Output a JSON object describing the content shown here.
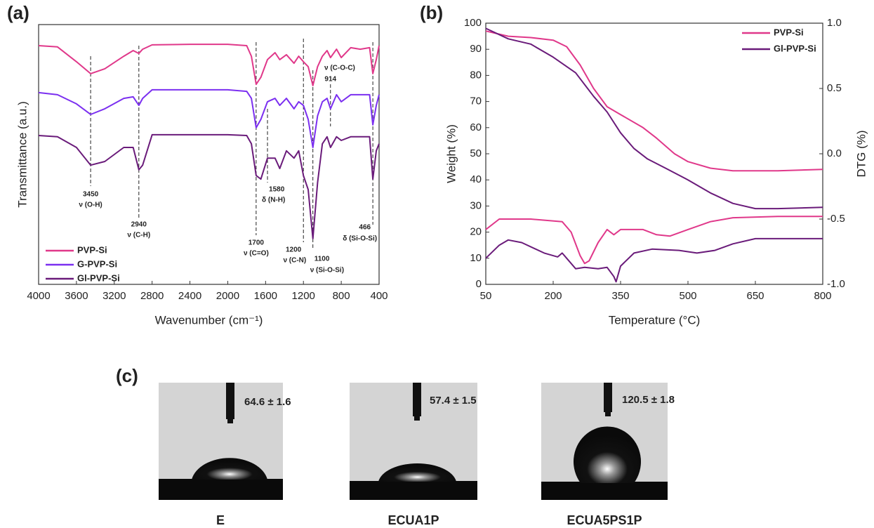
{
  "chart_data": [
    {
      "type": "line",
      "label": "(a)",
      "x_label": "Wavenumber (cm⁻¹)",
      "y_label": "Transmittance (a.u.)",
      "xlim": [
        4000,
        400
      ],
      "xticks": [
        4000,
        3600,
        3200,
        2800,
        2400,
        2000,
        1600,
        1200,
        800,
        400
      ],
      "ylim": [
        0,
        100
      ],
      "x": [
        4000,
        3800,
        3600,
        3450,
        3300,
        3100,
        3000,
        2940,
        2900,
        2800,
        2400,
        2000,
        1800,
        1750,
        1700,
        1650,
        1580,
        1500,
        1450,
        1380,
        1300,
        1250,
        1200,
        1150,
        1100,
        1050,
        1000,
        950,
        914,
        850,
        800,
        700,
        600,
        500,
        466,
        430,
        400
      ],
      "series": [
        {
          "name": "PVP-Si",
          "color": "#e0388a",
          "values": [
            91.9,
            91.4,
            85.7,
            81.1,
            83.0,
            87.8,
            90.0,
            88.9,
            90.5,
            92.2,
            92.4,
            92.4,
            91.9,
            87.8,
            77.0,
            79.7,
            86.5,
            89.2,
            86.5,
            88.4,
            85.1,
            87.8,
            85.7,
            83.8,
            76.5,
            83.8,
            87.8,
            90.0,
            87.3,
            90.5,
            87.3,
            91.1,
            90.5,
            91.1,
            81.1,
            86.5,
            91.9
          ]
        },
        {
          "name": "G-PVP-Si",
          "color": "#7b2ff0",
          "values": [
            73.8,
            73.0,
            69.5,
            65.4,
            67.6,
            71.6,
            72.2,
            68.9,
            71.6,
            74.9,
            74.9,
            74.9,
            74.3,
            71.6,
            60.3,
            63.5,
            70.3,
            71.6,
            68.9,
            71.6,
            67.6,
            70.3,
            68.9,
            63.5,
            52.7,
            64.9,
            70.3,
            71.6,
            67.6,
            73.0,
            70.3,
            73.0,
            73.0,
            73.0,
            61.4,
            68.9,
            73.0
          ]
        },
        {
          "name": "Gl-PVP-Si",
          "color": "#6a1b7a",
          "values": [
            57.3,
            56.8,
            52.7,
            45.9,
            47.3,
            52.7,
            52.7,
            44.1,
            45.9,
            57.6,
            57.6,
            57.6,
            57.3,
            54.1,
            41.9,
            40.5,
            48.6,
            48.6,
            44.6,
            51.4,
            48.6,
            51.4,
            41.9,
            36.5,
            17.6,
            39.2,
            54.1,
            56.8,
            52.7,
            56.8,
            55.4,
            56.8,
            56.8,
            56.8,
            40.5,
            51.4,
            54.1
          ]
        }
      ],
      "annotations": [
        {
          "x": 3450,
          "text": "ν (O-H)"
        },
        {
          "x": 2940,
          "text": "ν (C-H)"
        },
        {
          "x": 1700,
          "text": "ν (C=O)"
        },
        {
          "x": 1580,
          "text": "δ (N-H)"
        },
        {
          "x": 1200,
          "text": "ν (C-N)"
        },
        {
          "x": 1100,
          "text": "ν (Si-O-Si)"
        },
        {
          "x": 914
        },
        {
          "x": 466,
          "text": "δ (Si-O-Si)"
        },
        {
          "text": "ν (C-O-C)"
        }
      ]
    },
    {
      "type": "line",
      "label": "(b)",
      "x_label": "Temperature (°C)",
      "y_label": "Weight (%)",
      "y2_label": "DTG (%)",
      "xlim": [
        50,
        800
      ],
      "xticks": [
        50,
        200,
        350,
        500,
        650,
        800
      ],
      "ylim": [
        0,
        100
      ],
      "yticks": [
        0,
        10,
        20,
        30,
        40,
        50,
        60,
        70,
        80,
        90,
        100
      ],
      "y2lim": [
        -1,
        1
      ],
      "y2ticks": [
        {
          "value": -1,
          "label": "-1.0"
        },
        -0.5,
        {
          "value": 0,
          "label": "0.0"
        },
        0.5,
        {
          "value": 1,
          "label": "1.0"
        }
      ],
      "legend": "top-right",
      "series": [
        {
          "name": "PVP-Si",
          "color": "#e0388a",
          "x": [
            50,
            100,
            150,
            200,
            230,
            260,
            290,
            320,
            350,
            400,
            430,
            470,
            500,
            550,
            600,
            650,
            700,
            800
          ],
          "values": [
            97,
            95,
            94.5,
            93.5,
            91,
            84,
            75,
            68,
            65,
            60,
            56,
            50,
            47,
            44.5,
            43.5,
            43.5,
            43.5,
            44
          ]
        },
        {
          "name": "Gl-PVP-Si",
          "color": "#6a1b7a",
          "x": [
            50,
            100,
            150,
            200,
            250,
            290,
            320,
            350,
            380,
            410,
            450,
            500,
            550,
            600,
            650,
            700,
            800
          ],
          "values": [
            98,
            94,
            92,
            87,
            81,
            72,
            66,
            58,
            52,
            48,
            44.5,
            40,
            35,
            31,
            29,
            29,
            29.5
          ]
        },
        {
          "color": "#e0388a",
          "axis": "y2",
          "x": [
            50,
            80,
            150,
            220,
            240,
            260,
            270,
            280,
            300,
            320,
            335,
            350,
            400,
            430,
            460,
            500,
            550,
            600,
            700,
            800
          ],
          "values": [
            -0.58,
            -0.5,
            -0.5,
            -0.52,
            -0.6,
            -0.78,
            -0.84,
            -0.82,
            -0.68,
            -0.58,
            -0.62,
            -0.58,
            -0.58,
            -0.62,
            -0.63,
            -0.58,
            -0.52,
            -0.49,
            -0.48,
            -0.48
          ]
        },
        {
          "color": "#6a1b7a",
          "axis": "y2",
          "x": [
            50,
            80,
            100,
            130,
            180,
            210,
            220,
            230,
            250,
            270,
            300,
            320,
            335,
            340,
            350,
            380,
            420,
            480,
            520,
            560,
            600,
            650,
            700,
            800
          ],
          "values": [
            -0.8,
            -0.7,
            -0.66,
            -0.68,
            -0.76,
            -0.79,
            -0.76,
            -0.8,
            -0.88,
            -0.87,
            -0.88,
            -0.87,
            -0.94,
            -0.98,
            -0.86,
            -0.76,
            -0.73,
            -0.74,
            -0.76,
            -0.74,
            -0.69,
            -0.65,
            -0.65,
            -0.65
          ]
        }
      ]
    }
  ],
  "photos": {
    "label": "(c)",
    "items": [
      {
        "caption": "E",
        "angle": "64.6 ± 1.6"
      },
      {
        "caption": "ECUA1P",
        "angle": "57.4 ± 1.5"
      },
      {
        "caption": "ECUA5PS1P",
        "angle": "120.5 ± 1.8"
      }
    ]
  }
}
